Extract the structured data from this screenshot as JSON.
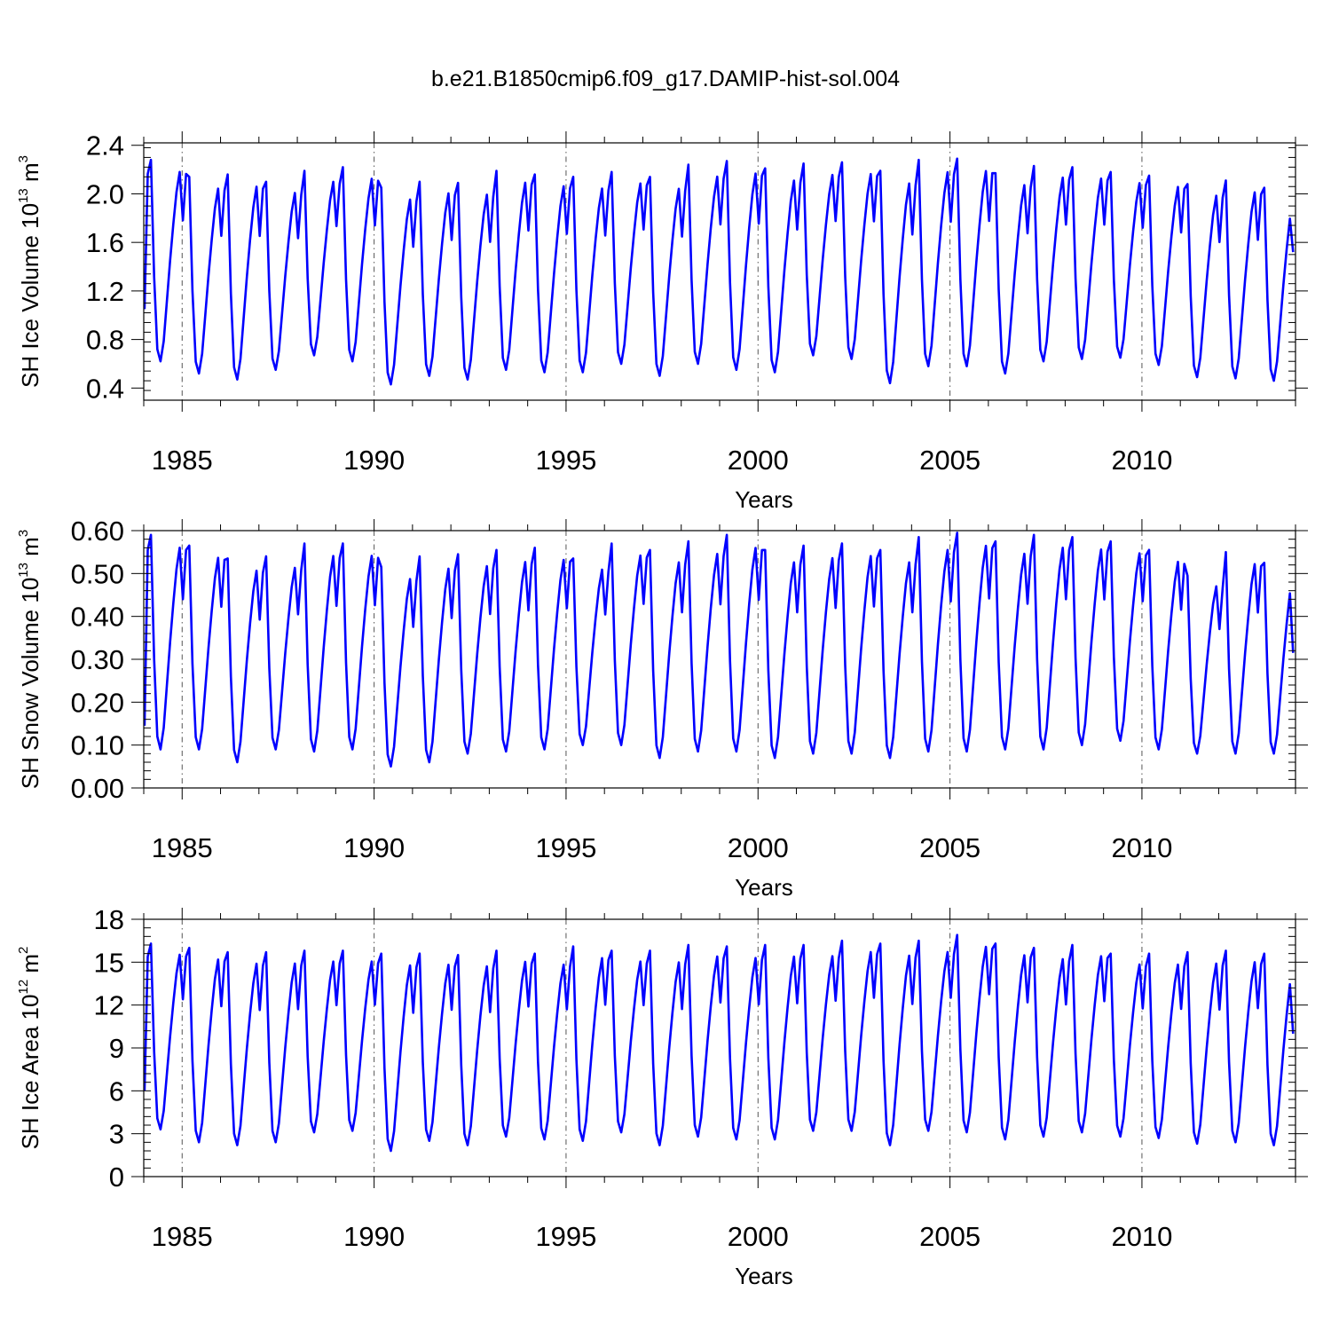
{
  "figure_title": "b.e21.B1850cmip6.f09_g17.DAMIP-hist-sol.004",
  "chart_data": [
    {
      "type": "line",
      "title": "",
      "xlabel": "Years",
      "ylabel": "SH Ice Volume 10¹³ m³",
      "ylabel_main": "SH Ice Volume 10",
      "ylabel_exp": "13",
      "ylabel_unit": " m",
      "ylabel_unit_exp": "3",
      "xlim": [
        1984,
        2014
      ],
      "ylim": [
        0.3,
        2.42
      ],
      "x_ticks": [
        1985,
        1990,
        1995,
        2000,
        2005,
        2010
      ],
      "x_tick_labels": [
        "1985",
        "1990",
        "1995",
        "2000",
        "2005",
        "2010"
      ],
      "y_ticks": [
        0.4,
        0.8,
        1.2,
        1.6,
        2.0,
        2.4
      ],
      "y_tick_labels": [
        "0.4",
        "0.8",
        "1.2",
        "1.6",
        "2.0",
        "2.4"
      ],
      "y_minor_step": 0.08,
      "grid": "dashed vertical lines at 5-year marks",
      "series": [
        {
          "name": "SH Ice Volume",
          "color": "#0000ff",
          "year_start": 1984,
          "annual_max": [
            2.28,
            2.14,
            2.16,
            2.1,
            2.19,
            2.22,
            2.05,
            2.1,
            2.09,
            2.19,
            2.16,
            2.14,
            2.18,
            2.14,
            2.24,
            2.27,
            2.21,
            2.25,
            2.26,
            2.19,
            2.28,
            2.29,
            2.17,
            2.23,
            2.22,
            2.18,
            2.15,
            2.08,
            2.11,
            2.05
          ],
          "annual_min": [
            0.62,
            0.52,
            0.47,
            0.55,
            0.67,
            0.62,
            0.43,
            0.5,
            0.47,
            0.55,
            0.53,
            0.53,
            0.6,
            0.5,
            0.6,
            0.55,
            0.53,
            0.67,
            0.64,
            0.44,
            0.58,
            0.58,
            0.52,
            0.62,
            0.64,
            0.65,
            0.59,
            0.49,
            0.48,
            0.46
          ],
          "start_value": 1.05,
          "end_value": 1.52
        }
      ]
    },
    {
      "type": "line",
      "title": "",
      "xlabel": "Years",
      "ylabel": "SH Snow Volume 10¹³ m³",
      "ylabel_main": "SH Snow Volume 10",
      "ylabel_exp": "13",
      "ylabel_unit": " m",
      "ylabel_unit_exp": "3",
      "xlim": [
        1984,
        2014
      ],
      "ylim": [
        0.0,
        0.6
      ],
      "x_ticks": [
        1985,
        1990,
        1995,
        2000,
        2005,
        2010
      ],
      "x_tick_labels": [
        "1985",
        "1990",
        "1995",
        "2000",
        "2005",
        "2010"
      ],
      "y_ticks": [
        0.0,
        0.1,
        0.2,
        0.3,
        0.4,
        0.5,
        0.6
      ],
      "y_tick_labels": [
        "0.00",
        "0.10",
        "0.20",
        "0.30",
        "0.40",
        "0.50",
        "0.60"
      ],
      "y_minor_step": 0.02,
      "grid": "dashed vertical lines at 5-year marks",
      "series": [
        {
          "name": "SH Snow Volume",
          "color": "#0000ff",
          "year_start": 1984,
          "annual_max": [
            0.59,
            0.565,
            0.535,
            0.54,
            0.57,
            0.57,
            0.515,
            0.54,
            0.545,
            0.555,
            0.56,
            0.535,
            0.57,
            0.555,
            0.575,
            0.59,
            0.555,
            0.565,
            0.57,
            0.555,
            0.585,
            0.595,
            0.575,
            0.59,
            0.585,
            0.575,
            0.555,
            0.495,
            0.55,
            0.525
          ],
          "annual_min": [
            0.09,
            0.09,
            0.06,
            0.09,
            0.085,
            0.09,
            0.05,
            0.06,
            0.08,
            0.085,
            0.09,
            0.1,
            0.1,
            0.07,
            0.085,
            0.085,
            0.07,
            0.08,
            0.08,
            0.07,
            0.085,
            0.085,
            0.09,
            0.09,
            0.1,
            0.11,
            0.09,
            0.08,
            0.08,
            0.08
          ],
          "start_value": 0.145,
          "end_value": 0.315
        }
      ]
    },
    {
      "type": "line",
      "title": "",
      "xlabel": "Years",
      "ylabel": "SH Ice Area 10¹² m²",
      "ylabel_main": "SH Ice Area 10",
      "ylabel_exp": "12",
      "ylabel_unit": " m",
      "ylabel_unit_exp": "2",
      "xlim": [
        1984,
        2014
      ],
      "ylim": [
        0,
        18
      ],
      "x_ticks": [
        1985,
        1990,
        1995,
        2000,
        2005,
        2010
      ],
      "x_tick_labels": [
        "1985",
        "1990",
        "1995",
        "2000",
        "2005",
        "2010"
      ],
      "y_ticks": [
        0,
        3,
        6,
        9,
        12,
        15,
        18
      ],
      "y_tick_labels": [
        "0",
        "3",
        "6",
        "9",
        "12",
        "15",
        "18"
      ],
      "y_minor_step": 0.6,
      "grid": "dashed vertical lines at 5-year marks",
      "series": [
        {
          "name": "SH Ice Area",
          "color": "#0000ff",
          "year_start": 1984,
          "annual_max": [
            16.3,
            16.0,
            15.7,
            15.7,
            15.8,
            15.8,
            15.6,
            15.6,
            15.5,
            15.8,
            15.6,
            16.1,
            15.8,
            15.8,
            16.2,
            16.1,
            16.2,
            16.2,
            16.5,
            16.3,
            16.5,
            16.9,
            16.3,
            16.0,
            16.2,
            15.6,
            15.6,
            15.7,
            15.8,
            15.6
          ],
          "annual_min": [
            3.3,
            2.4,
            2.2,
            2.4,
            3.1,
            3.2,
            1.8,
            2.5,
            2.2,
            2.8,
            2.6,
            2.5,
            3.1,
            2.2,
            2.8,
            2.6,
            2.6,
            3.2,
            3.2,
            2.2,
            3.2,
            3.1,
            2.6,
            2.8,
            3.1,
            2.8,
            2.7,
            2.3,
            2.4,
            2.2
          ],
          "start_value": 6.0,
          "end_value": 10.0
        }
      ]
    }
  ]
}
